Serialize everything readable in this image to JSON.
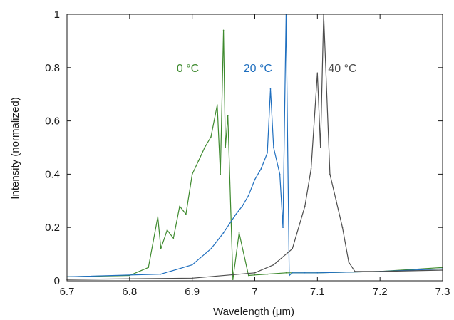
{
  "chart_data": {
    "type": "line",
    "title": "",
    "xlabel": "Wavelength (μm)",
    "ylabel": "Intensity (normalized)",
    "xlim": [
      6.7,
      7.3
    ],
    "ylim": [
      0,
      1
    ],
    "x_ticks": [
      "6.7",
      "6.8",
      "6.9",
      "7",
      "7.1",
      "7.2",
      "7.3"
    ],
    "x_tick_values": [
      6.7,
      6.8,
      6.9,
      7.0,
      7.1,
      7.2,
      7.3
    ],
    "y_ticks": [
      "0",
      "0.2",
      "0.4",
      "0.6",
      "0.8",
      "1"
    ],
    "y_tick_values": [
      0,
      0.2,
      0.4,
      0.6,
      0.8,
      1.0
    ],
    "grid": false,
    "legend": "inline labels near top of each series",
    "series": [
      {
        "name": "0 °C",
        "color": "#3e8a2e",
        "label_at": [
          6.893,
          0.8
        ],
        "x": [
          6.7,
          6.8,
          6.83,
          6.845,
          6.85,
          6.86,
          6.87,
          6.88,
          6.89,
          6.9,
          6.91,
          6.92,
          6.93,
          6.94,
          6.945,
          6.95,
          6.953,
          6.957,
          6.965,
          6.975,
          6.99,
          7.0,
          7.02,
          7.05,
          7.1,
          7.2,
          7.3
        ],
        "y": [
          0.015,
          0.02,
          0.05,
          0.24,
          0.12,
          0.19,
          0.16,
          0.28,
          0.25,
          0.4,
          0.45,
          0.5,
          0.54,
          0.66,
          0.4,
          0.94,
          0.5,
          0.62,
          0.005,
          0.18,
          0.02,
          0.022,
          0.025,
          0.03,
          0.03,
          0.035,
          0.05
        ]
      },
      {
        "name": "20 °C",
        "color": "#1f6fbf",
        "label_at": [
          7.005,
          0.8
        ],
        "x": [
          6.7,
          6.85,
          6.9,
          6.93,
          6.95,
          6.97,
          6.98,
          6.99,
          7.0,
          7.01,
          7.02,
          7.025,
          7.03,
          7.04,
          7.045,
          7.05,
          7.055,
          7.06,
          7.08,
          7.1,
          7.2,
          7.3
        ],
        "y": [
          0.015,
          0.025,
          0.06,
          0.12,
          0.18,
          0.25,
          0.28,
          0.32,
          0.38,
          0.42,
          0.48,
          0.72,
          0.5,
          0.4,
          0.2,
          1.0,
          0.02,
          0.03,
          0.03,
          0.03,
          0.035,
          0.045
        ]
      },
      {
        "name": "40 °C",
        "color": "#4d4d4d",
        "label_at": [
          7.14,
          0.8
        ],
        "x": [
          6.7,
          6.9,
          7.0,
          7.03,
          7.06,
          7.08,
          7.09,
          7.1,
          7.105,
          7.11,
          7.12,
          7.13,
          7.14,
          7.15,
          7.16,
          7.2,
          7.3
        ],
        "y": [
          0.005,
          0.01,
          0.03,
          0.06,
          0.12,
          0.28,
          0.42,
          0.78,
          0.5,
          1.0,
          0.4,
          0.3,
          0.2,
          0.07,
          0.035,
          0.035,
          0.04
        ]
      }
    ]
  }
}
